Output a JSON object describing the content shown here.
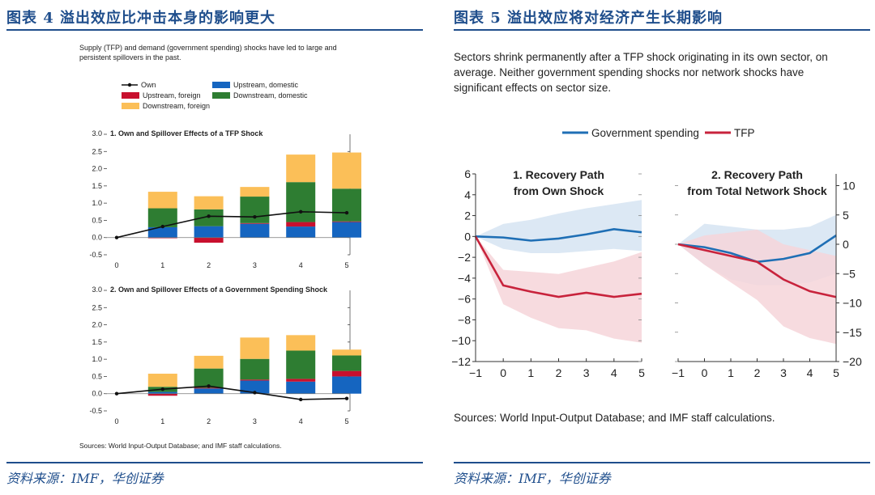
{
  "colors": {
    "title": "#1f4e8c",
    "own": "#111111",
    "upstream_domestic": "#1565c0",
    "upstream_foreign": "#c8102e",
    "downstream_domestic": "#2e7d32",
    "downstream_foreign": "#fbbf58",
    "gov_line": "#1f6fb5",
    "gov_band": "#d6e4f2",
    "tfp_line": "#c8233c",
    "tfp_band": "#f6d5d9"
  },
  "left_panel": {
    "title": "图表 4   溢出效应比冲击本身的影响更大",
    "source": "资料来源：IMF，华创证券",
    "intro": [
      "Supply (TFP) and demand (government spending) shocks have led to large and",
      "persistent spillovers in the past."
    ],
    "legend": {
      "own": "Own",
      "upstream_domestic": "Upstream, domestic",
      "upstream_foreign": "Upstream, foreign",
      "downstream_domestic": "Downstream, domestic",
      "downstream_foreign": "Downstream, foreign"
    },
    "note": "Sources: World Input-Output Database; and IMF staff calculations."
  },
  "right_panel": {
    "title": "图表 5   溢出效应将对经济产生长期影响",
    "source": "资料来源：IMF，华创证券",
    "intro": [
      "Sectors shrink permanently after a TFP shock originating in its own sector, on",
      "average. Neither government spending shocks nor network shocks have",
      "significant effects on sector size."
    ],
    "legend": {
      "gov": "Government spending",
      "tfp": "TFP"
    },
    "note": "Sources: World Input-Output Database; and IMF staff calculations."
  },
  "chart_data": [
    {
      "type": "bar",
      "title": "1. Own and Spillover Effects of a TFP Shock",
      "top_tick_label": "3.0",
      "ylim": [
        -0.5,
        3.0
      ],
      "yticks": [
        -0.5,
        0.0,
        0.5,
        1.0,
        1.5,
        2.0,
        2.5
      ],
      "categories": [
        "0",
        "1",
        "2",
        "3",
        "4",
        "5"
      ],
      "own": [
        0.0,
        0.32,
        0.62,
        0.6,
        0.75,
        0.72
      ],
      "series": [
        {
          "name": "Upstream, domestic",
          "key": "upstream_domestic",
          "values": [
            0,
            0.3,
            0.33,
            0.4,
            0.32,
            0.45
          ]
        },
        {
          "name": "Upstream, foreign",
          "key": "upstream_foreign",
          "values": [
            0,
            -0.02,
            -0.15,
            0.02,
            0.13,
            0.02
          ]
        },
        {
          "name": "Downstream, domestic",
          "key": "downstream_domestic",
          "values": [
            0,
            0.55,
            0.49,
            0.77,
            1.16,
            0.95
          ]
        },
        {
          "name": "Downstream, foreign",
          "key": "downstream_foreign",
          "values": [
            0,
            0.48,
            0.38,
            0.28,
            0.8,
            1.05
          ]
        }
      ]
    },
    {
      "type": "bar",
      "title": "2. Own and Spillover Effects of a Government Spending Shock",
      "top_tick_label": "3.0",
      "ylim": [
        -0.5,
        3.0
      ],
      "yticks": [
        -0.5,
        0.0,
        0.5,
        1.0,
        1.5,
        2.0,
        2.5
      ],
      "categories": [
        "0",
        "1",
        "2",
        "3",
        "4",
        "5"
      ],
      "own": [
        0.0,
        0.13,
        0.22,
        0.03,
        -0.17,
        -0.14
      ],
      "series": [
        {
          "name": "Upstream, domestic",
          "key": "upstream_domestic",
          "values": [
            0,
            0.05,
            0.15,
            0.38,
            0.35,
            0.5
          ]
        },
        {
          "name": "Upstream, foreign",
          "key": "upstream_foreign",
          "values": [
            0,
            -0.06,
            0.02,
            0.03,
            0.08,
            0.16
          ]
        },
        {
          "name": "Downstream, domestic",
          "key": "downstream_domestic",
          "values": [
            0,
            0.15,
            0.56,
            0.6,
            0.82,
            0.45
          ]
        },
        {
          "name": "Downstream, foreign",
          "key": "downstream_foreign",
          "values": [
            0,
            0.38,
            0.37,
            0.62,
            0.45,
            0.17
          ]
        }
      ]
    },
    {
      "type": "line",
      "title": "1. Recovery Path from Own Shock",
      "x": [
        -1,
        0,
        1,
        2,
        3,
        4,
        5
      ],
      "ylim": [
        -12,
        6
      ],
      "yticks": [
        6,
        4,
        2,
        0,
        -2,
        -4,
        -6,
        -8,
        -10,
        -12
      ],
      "axis_side": "left",
      "series": [
        {
          "name": "Government spending",
          "key": "gov",
          "values": [
            0,
            -0.1,
            -0.4,
            -0.2,
            0.2,
            0.7,
            0.4
          ],
          "lower": [
            0,
            -1.2,
            -1.6,
            -1.6,
            -1.4,
            -1.2,
            -1.4
          ],
          "upper": [
            0,
            1.2,
            1.6,
            2.2,
            2.7,
            3.1,
            3.5
          ]
        },
        {
          "name": "TFP",
          "key": "tfp",
          "values": [
            0,
            -4.7,
            -5.3,
            -5.8,
            -5.4,
            -5.8,
            -5.5
          ],
          "lower": [
            0,
            -6.5,
            -7.8,
            -8.8,
            -9.0,
            -9.8,
            -10.2
          ],
          "upper": [
            0,
            -3.2,
            -3.4,
            -3.6,
            -3.0,
            -2.4,
            -1.5
          ]
        }
      ]
    },
    {
      "type": "line",
      "title": "2. Recovery Path from Total Network Shock",
      "x": [
        -1,
        0,
        1,
        2,
        3,
        4,
        5
      ],
      "ylim": [
        -20,
        12
      ],
      "yticks": [
        10,
        5,
        0,
        -5,
        -10,
        -15,
        -20
      ],
      "axis_side": "right",
      "series": [
        {
          "name": "Government spending",
          "key": "gov",
          "values": [
            0,
            -0.5,
            -1.5,
            -3.0,
            -2.5,
            -1.5,
            1.5
          ],
          "lower": [
            0,
            -3.5,
            -6.0,
            -7.0,
            -7.0,
            -6.5,
            -5.0
          ],
          "upper": [
            0,
            3.5,
            3.0,
            2.5,
            2.5,
            3.0,
            5.0
          ]
        },
        {
          "name": "TFP",
          "key": "tfp",
          "values": [
            0,
            -1.0,
            -2.0,
            -3.0,
            -6.0,
            -8.0,
            -9.0
          ],
          "lower": [
            0,
            -3.5,
            -6.5,
            -9.5,
            -14.0,
            -16.0,
            -17.0
          ],
          "upper": [
            0,
            1.5,
            2.0,
            2.5,
            0.0,
            -1.0,
            -2.0
          ]
        }
      ]
    }
  ]
}
